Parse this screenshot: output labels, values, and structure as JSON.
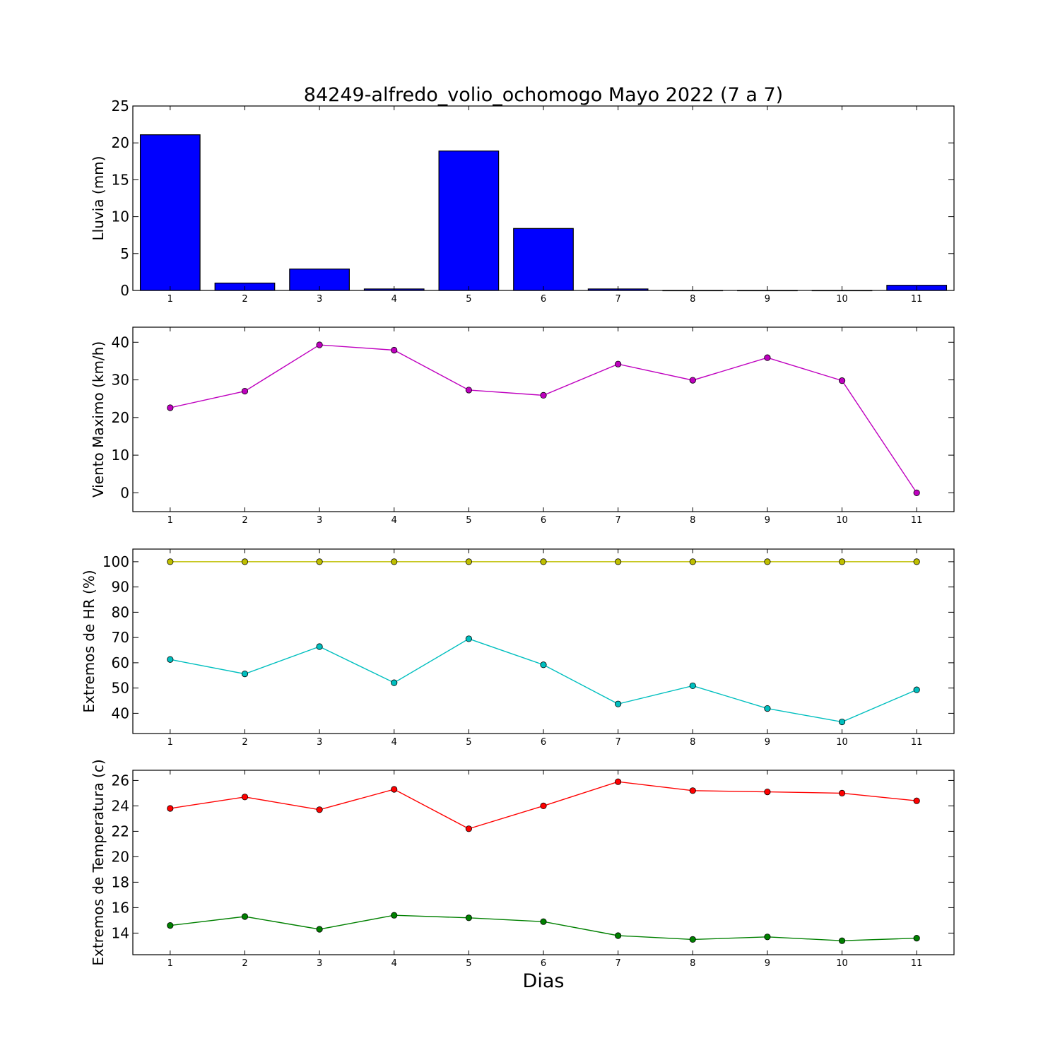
{
  "figure": {
    "title": "84249-alfredo_volio_ochomogo Mayo 2022  (7 a 7)",
    "xlabel": "Dias"
  },
  "chart_data": [
    {
      "type": "bar",
      "ylabel": "Lluvia (mm)",
      "x": [
        1,
        2,
        3,
        4,
        5,
        6,
        7,
        8,
        9,
        10,
        11
      ],
      "xlim": [
        0.5,
        11.5
      ],
      "ylim": [
        0,
        25
      ],
      "yticks": [
        0,
        5,
        10,
        15,
        20,
        25
      ],
      "series": [
        {
          "values": [
            21.1,
            1.0,
            2.9,
            0.2,
            18.9,
            8.4,
            0.2,
            0.0,
            0.0,
            0.0,
            0.7
          ],
          "color": "#0000ff"
        }
      ]
    },
    {
      "type": "line",
      "ylabel": "Viento Maximo (km/h)",
      "x": [
        1,
        2,
        3,
        4,
        5,
        6,
        7,
        8,
        9,
        10,
        11
      ],
      "xlim": [
        0.5,
        11.5
      ],
      "ylim": [
        -5,
        44
      ],
      "yticks": [
        0,
        10,
        20,
        30,
        40
      ],
      "series": [
        {
          "values": [
            22.6,
            27.0,
            39.3,
            37.9,
            27.3,
            25.9,
            34.2,
            29.9,
            35.9,
            29.8,
            0.0
          ],
          "color": "#bf00bf"
        }
      ]
    },
    {
      "type": "line",
      "ylabel": "Extremos de HR (%)",
      "x": [
        1,
        2,
        3,
        4,
        5,
        6,
        7,
        8,
        9,
        10,
        11
      ],
      "xlim": [
        0.5,
        11.5
      ],
      "ylim": [
        32,
        105
      ],
      "yticks": [
        40,
        50,
        60,
        70,
        80,
        90,
        100
      ],
      "series": [
        {
          "values": [
            100,
            100,
            100,
            100,
            100,
            100,
            100,
            100,
            100,
            100,
            100
          ],
          "color": "#bfbf00"
        },
        {
          "values": [
            61.3,
            55.6,
            66.4,
            52.1,
            69.5,
            59.2,
            43.7,
            50.9,
            41.9,
            36.6,
            49.3
          ],
          "color": "#00bfbf"
        }
      ]
    },
    {
      "type": "line",
      "ylabel": "Extremos de Temperatura (c)",
      "x": [
        1,
        2,
        3,
        4,
        5,
        6,
        7,
        8,
        9,
        10,
        11
      ],
      "xlim": [
        0.5,
        11.5
      ],
      "ylim": [
        12.3,
        26.8
      ],
      "yticks": [
        14,
        16,
        18,
        20,
        22,
        24,
        26
      ],
      "series": [
        {
          "values": [
            23.8,
            24.7,
            23.7,
            25.3,
            22.2,
            24.0,
            25.9,
            25.2,
            25.1,
            25.0,
            24.4
          ],
          "color": "#ff0000"
        },
        {
          "values": [
            14.6,
            15.3,
            14.3,
            15.4,
            15.2,
            14.9,
            13.8,
            13.5,
            13.7,
            13.4,
            13.6
          ],
          "color": "#008000"
        }
      ]
    }
  ]
}
